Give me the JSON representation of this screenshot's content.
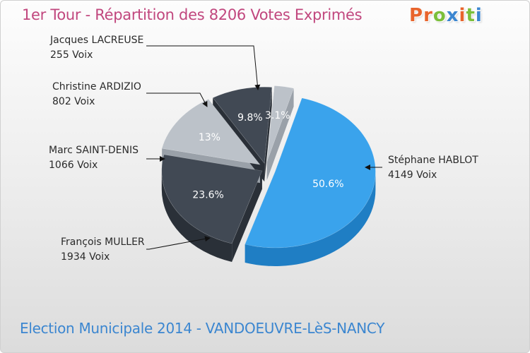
{
  "header": {
    "title": "1er Tour - Répartition des 8206 Votes Exprimés",
    "logo": "Proxiti",
    "logo_colors": [
      "#e8642c",
      "#e8642c",
      "#7bbf3a",
      "#3b86d0",
      "#e8642c",
      "#7bbf3a",
      "#3b86d0"
    ]
  },
  "footer": {
    "subtitle": "Election Municipale 2014 - VANDOEUVRE-LèS-NANCY"
  },
  "chart_data": {
    "type": "pie",
    "title": "1er Tour - Répartition des 8206 Votes Exprimés",
    "total_votes": 8206,
    "slices": [
      {
        "name": "Stéphane HABLOT",
        "votes": 4149,
        "votes_label": "4149 Voix",
        "percent": 50.6,
        "percent_label": "50.6%",
        "color": "#3aa3ec",
        "side_color": "#1f7ec4"
      },
      {
        "name": "François MULLER",
        "votes": 1934,
        "votes_label": "1934 Voix",
        "percent": 23.6,
        "percent_label": "23.6%",
        "color": "#414954",
        "side_color": "#2a3038"
      },
      {
        "name": "Marc SAINT-DENIS",
        "votes": 1066,
        "votes_label": "1066 Voix",
        "percent": 13,
        "percent_label": "13%",
        "color": "#bcc2c9",
        "side_color": "#9aa1a9"
      },
      {
        "name": "Christine ARDIZIO",
        "votes": 802,
        "votes_label": "802 Voix",
        "percent": 9.8,
        "percent_label": "9.8%",
        "color": "#414954",
        "side_color": "#2a3038"
      },
      {
        "name": "Jacques LACREUSE",
        "votes": 255,
        "votes_label": "255 Voix",
        "percent": 3.1,
        "percent_label": "3.1%",
        "color": "#bcc2c9",
        "side_color": "#9aa1a9"
      }
    ]
  }
}
